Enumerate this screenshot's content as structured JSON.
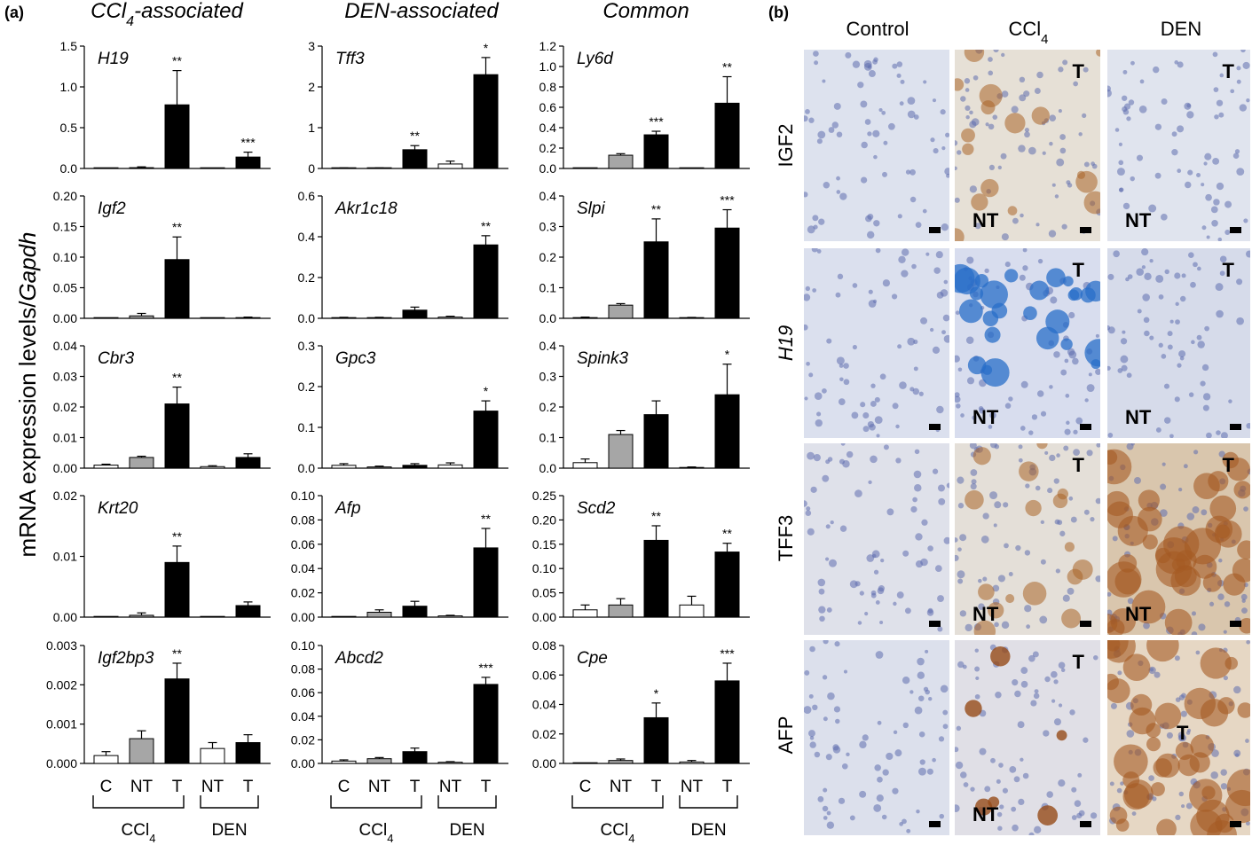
{
  "figure": {
    "panel_a_label": "(a)",
    "panel_b_label": "(b)",
    "y_axis_label_main": "mRNA expression levels/",
    "y_axis_label_italic": "Gapdh"
  },
  "columns": [
    {
      "title": "CCl4-associated",
      "base": "CCl",
      "sub": "4",
      "rest": "-associated"
    },
    {
      "title": "DEN-associated"
    },
    {
      "title": "Common"
    }
  ],
  "x_axis": {
    "categories": [
      "C",
      "NT",
      "T",
      "NT",
      "T"
    ],
    "groups": [
      {
        "label": "CCl4",
        "base": "CCl",
        "sub": "4"
      },
      {
        "label": "DEN"
      }
    ]
  },
  "chart_data": [
    {
      "type": "bar",
      "gene": "H19",
      "categories": [
        "C",
        "NT",
        "T",
        "NT",
        "T"
      ],
      "values": [
        0.0,
        0.01,
        0.78,
        0.0,
        0.14
      ],
      "errors": [
        0.0,
        0.01,
        0.42,
        0.0,
        0.06
      ],
      "sig": [
        "",
        "",
        "**",
        "",
        "***"
      ],
      "ylim": [
        0,
        1.5
      ],
      "yticks": [
        "0.0",
        "0.5",
        "1.0",
        "1.5"
      ],
      "colors": [
        "#ffffff",
        "#a6a6a6",
        "#000000",
        "#ffffff",
        "#000000"
      ]
    },
    {
      "type": "bar",
      "gene": "Igf2",
      "categories": [
        "C",
        "NT",
        "T",
        "NT",
        "T"
      ],
      "values": [
        0.0,
        0.004,
        0.096,
        0.0,
        0.001
      ],
      "errors": [
        0.0,
        0.004,
        0.037,
        0.0,
        0.001
      ],
      "sig": [
        "",
        "",
        "**",
        "",
        ""
      ],
      "ylim": [
        0,
        0.2
      ],
      "yticks": [
        "0.00",
        "0.05",
        "0.10",
        "0.15",
        "0.20"
      ],
      "colors": [
        "#ffffff",
        "#a6a6a6",
        "#000000",
        "#ffffff",
        "#000000"
      ]
    },
    {
      "type": "bar",
      "gene": "Cbr3",
      "categories": [
        "C",
        "NT",
        "T",
        "NT",
        "T"
      ],
      "values": [
        0.001,
        0.0035,
        0.021,
        0.0005,
        0.0035
      ],
      "errors": [
        0.0003,
        0.0004,
        0.0055,
        0.0003,
        0.0012
      ],
      "sig": [
        "",
        "",
        "**",
        "",
        ""
      ],
      "ylim": [
        0,
        0.04
      ],
      "yticks": [
        "0.00",
        "0.01",
        "0.02",
        "0.03",
        "0.04"
      ],
      "colors": [
        "#ffffff",
        "#a6a6a6",
        "#000000",
        "#ffffff",
        "#000000"
      ]
    },
    {
      "type": "bar",
      "gene": "Krt20",
      "categories": [
        "C",
        "NT",
        "T",
        "NT",
        "T"
      ],
      "values": [
        0.0,
        0.0003,
        0.009,
        0.0,
        0.0019
      ],
      "errors": [
        0.0,
        0.0004,
        0.0027,
        0.0,
        0.0006
      ],
      "sig": [
        "",
        "",
        "**",
        "",
        ""
      ],
      "ylim": [
        0,
        0.02
      ],
      "yticks": [
        "0.00",
        "0.01",
        "0.02"
      ],
      "colors": [
        "#ffffff",
        "#a6a6a6",
        "#000000",
        "#ffffff",
        "#000000"
      ]
    },
    {
      "type": "bar",
      "gene": "Igf2bp3",
      "categories": [
        "C",
        "NT",
        "T",
        "NT",
        "T"
      ],
      "values": [
        0.0002,
        0.00063,
        0.00215,
        0.00038,
        0.00053
      ],
      "errors": [
        0.0001,
        0.0002,
        0.0004,
        0.00015,
        0.0002
      ],
      "sig": [
        "",
        "",
        "**",
        "",
        ""
      ],
      "ylim": [
        0,
        0.003
      ],
      "yticks": [
        "0.000",
        "0.001",
        "0.002",
        "0.003"
      ],
      "colors": [
        "#ffffff",
        "#a6a6a6",
        "#000000",
        "#ffffff",
        "#000000"
      ]
    },
    {
      "type": "bar",
      "gene": "Tff3",
      "categories": [
        "C",
        "NT",
        "T",
        "NT",
        "T"
      ],
      "values": [
        0.01,
        0.01,
        0.46,
        0.11,
        2.3
      ],
      "errors": [
        0.005,
        0.005,
        0.1,
        0.07,
        0.42
      ],
      "sig": [
        "",
        "",
        "**",
        "",
        "*"
      ],
      "ylim": [
        0,
        3
      ],
      "yticks": [
        "0",
        "1",
        "2",
        "3"
      ],
      "colors": [
        "#ffffff",
        "#a6a6a6",
        "#000000",
        "#ffffff",
        "#000000"
      ]
    },
    {
      "type": "bar",
      "gene": "Akr1c18",
      "categories": [
        "C",
        "NT",
        "T",
        "NT",
        "T"
      ],
      "values": [
        0.003,
        0.003,
        0.04,
        0.006,
        0.36
      ],
      "errors": [
        0.002,
        0.002,
        0.015,
        0.004,
        0.045
      ],
      "sig": [
        "",
        "",
        "",
        "",
        "**"
      ],
      "ylim": [
        0,
        0.6
      ],
      "yticks": [
        "0.0",
        "0.2",
        "0.4",
        "0.6"
      ],
      "colors": [
        "#ffffff",
        "#a6a6a6",
        "#000000",
        "#ffffff",
        "#000000"
      ]
    },
    {
      "type": "bar",
      "gene": "Gpc3",
      "categories": [
        "C",
        "NT",
        "T",
        "NT",
        "T"
      ],
      "values": [
        0.007,
        0.003,
        0.007,
        0.008,
        0.14
      ],
      "errors": [
        0.004,
        0.002,
        0.004,
        0.005,
        0.025
      ],
      "sig": [
        "",
        "",
        "",
        "",
        "*"
      ],
      "ylim": [
        0,
        0.3
      ],
      "yticks": [
        "0.0",
        "0.1",
        "0.2",
        "0.3"
      ],
      "colors": [
        "#ffffff",
        "#a6a6a6",
        "#000000",
        "#ffffff",
        "#000000"
      ]
    },
    {
      "type": "bar",
      "gene": "Afp",
      "categories": [
        "C",
        "NT",
        "T",
        "NT",
        "T"
      ],
      "values": [
        0.0,
        0.004,
        0.009,
        0.001,
        0.057
      ],
      "errors": [
        0.0,
        0.002,
        0.004,
        0.0005,
        0.016
      ],
      "sig": [
        "",
        "",
        "",
        "",
        "**"
      ],
      "ylim": [
        0,
        0.1
      ],
      "yticks": [
        "0.00",
        "0.02",
        "0.04",
        "0.06",
        "0.08",
        "0.10"
      ],
      "colors": [
        "#ffffff",
        "#a6a6a6",
        "#000000",
        "#ffffff",
        "#000000"
      ]
    },
    {
      "type": "bar",
      "gene": "Abcd2",
      "categories": [
        "C",
        "NT",
        "T",
        "NT",
        "T"
      ],
      "values": [
        0.002,
        0.004,
        0.01,
        0.001,
        0.067
      ],
      "errors": [
        0.001,
        0.001,
        0.003,
        0.0005,
        0.006
      ],
      "sig": [
        "",
        "",
        "",
        "",
        "***"
      ],
      "ylim": [
        0,
        0.1
      ],
      "yticks": [
        "0.00",
        "0.02",
        "0.04",
        "0.06",
        "0.08",
        "0.10"
      ],
      "colors": [
        "#ffffff",
        "#a6a6a6",
        "#000000",
        "#ffffff",
        "#000000"
      ]
    },
    {
      "type": "bar",
      "gene": "Ly6d",
      "categories": [
        "C",
        "NT",
        "T",
        "NT",
        "T"
      ],
      "values": [
        0.0,
        0.13,
        0.33,
        0.0,
        0.64
      ],
      "errors": [
        0.0,
        0.015,
        0.035,
        0.0,
        0.26
      ],
      "sig": [
        "",
        "",
        "***",
        "",
        "**"
      ],
      "ylim": [
        0,
        1.2
      ],
      "yticks": [
        "0.0",
        "0.2",
        "0.4",
        "0.6",
        "0.8",
        "1.0",
        "1.2"
      ],
      "colors": [
        "#ffffff",
        "#a6a6a6",
        "#000000",
        "#ffffff",
        "#000000"
      ]
    },
    {
      "type": "bar",
      "gene": "Slpi",
      "categories": [
        "C",
        "NT",
        "T",
        "NT",
        "T"
      ],
      "values": [
        0.002,
        0.043,
        0.25,
        0.002,
        0.295
      ],
      "errors": [
        0.002,
        0.005,
        0.075,
        0.001,
        0.06
      ],
      "sig": [
        "",
        "",
        "**",
        "",
        "***"
      ],
      "ylim": [
        0,
        0.4
      ],
      "yticks": [
        "0.0",
        "0.1",
        "0.2",
        "0.3",
        "0.4"
      ],
      "colors": [
        "#ffffff",
        "#a6a6a6",
        "#000000",
        "#ffffff",
        "#000000"
      ]
    },
    {
      "type": "bar",
      "gene": "Spink3",
      "categories": [
        "C",
        "NT",
        "T",
        "NT",
        "T"
      ],
      "values": [
        0.018,
        0.11,
        0.175,
        0.002,
        0.24
      ],
      "errors": [
        0.012,
        0.013,
        0.045,
        0.002,
        0.1
      ],
      "sig": [
        "",
        "",
        "",
        "",
        "*"
      ],
      "ylim": [
        0,
        0.4
      ],
      "yticks": [
        "0.0",
        "0.1",
        "0.2",
        "0.3",
        "0.4"
      ],
      "colors": [
        "#ffffff",
        "#a6a6a6",
        "#000000",
        "#ffffff",
        "#000000"
      ]
    },
    {
      "type": "bar",
      "gene": "Scd2",
      "categories": [
        "C",
        "NT",
        "T",
        "NT",
        "T"
      ],
      "values": [
        0.015,
        0.025,
        0.158,
        0.025,
        0.134
      ],
      "errors": [
        0.01,
        0.013,
        0.03,
        0.018,
        0.018
      ],
      "sig": [
        "",
        "",
        "**",
        "",
        "**"
      ],
      "ylim": [
        0,
        0.25
      ],
      "yticks": [
        "0.00",
        "0.05",
        "0.10",
        "0.15",
        "0.20",
        "0.25"
      ],
      "colors": [
        "#ffffff",
        "#a6a6a6",
        "#000000",
        "#ffffff",
        "#000000"
      ]
    },
    {
      "type": "bar",
      "gene": "Cpe",
      "categories": [
        "C",
        "NT",
        "T",
        "NT",
        "T"
      ],
      "values": [
        0.0,
        0.002,
        0.031,
        0.001,
        0.056
      ],
      "errors": [
        0.0,
        0.001,
        0.01,
        0.001,
        0.012
      ],
      "sig": [
        "",
        "",
        "*",
        "",
        "***"
      ],
      "ylim": [
        0,
        0.08
      ],
      "yticks": [
        "0.00",
        "0.02",
        "0.04",
        "0.06",
        "0.08"
      ],
      "colors": [
        "#ffffff",
        "#a6a6a6",
        "#000000",
        "#ffffff",
        "#000000"
      ]
    }
  ],
  "panel_b": {
    "column_headers": [
      {
        "text": "Control"
      },
      {
        "text": "CCl4",
        "base": "CCl",
        "sub": "4"
      },
      {
        "text": "DEN"
      }
    ],
    "row_labels": [
      {
        "text": "IGF2",
        "italic": false
      },
      {
        "text": "H19",
        "italic": true
      },
      {
        "text": "TFF3",
        "italic": false
      },
      {
        "text": "AFP",
        "italic": false
      }
    ],
    "tiles": [
      [
        {
          "labels": [],
          "stain": "none",
          "tone": "#dde2ee"
        },
        {
          "labels": [
            "T",
            "NT"
          ],
          "stain": "brown",
          "tone": "#e6e0d6"
        },
        {
          "labels": [
            "T",
            "NT"
          ],
          "stain": "none",
          "tone": "#e0e4ee"
        }
      ],
      [
        {
          "labels": [],
          "stain": "none",
          "tone": "#dbe0ee"
        },
        {
          "labels": [
            "T",
            "NT"
          ],
          "stain": "blue",
          "tone": "#d8ddee"
        },
        {
          "labels": [
            "T",
            "NT"
          ],
          "stain": "none",
          "tone": "#d6dbea"
        }
      ],
      [
        {
          "labels": [],
          "stain": "none",
          "tone": "#dfe1ea"
        },
        {
          "labels": [
            "T",
            "NT"
          ],
          "stain": "brown",
          "tone": "#e4dfd8"
        },
        {
          "labels": [
            "T",
            "NT"
          ],
          "stain": "brown-heavy",
          "tone": "#d9c6ad"
        }
      ],
      [
        {
          "labels": [],
          "stain": "none",
          "tone": "#dce0ec"
        },
        {
          "labels": [
            "T",
            "NT"
          ],
          "stain": "brown-spots",
          "tone": "#e0dfe6"
        },
        {
          "labels": [
            "T"
          ],
          "stain": "brown-heavy",
          "tone": "#e6d7c4"
        }
      ]
    ]
  }
}
